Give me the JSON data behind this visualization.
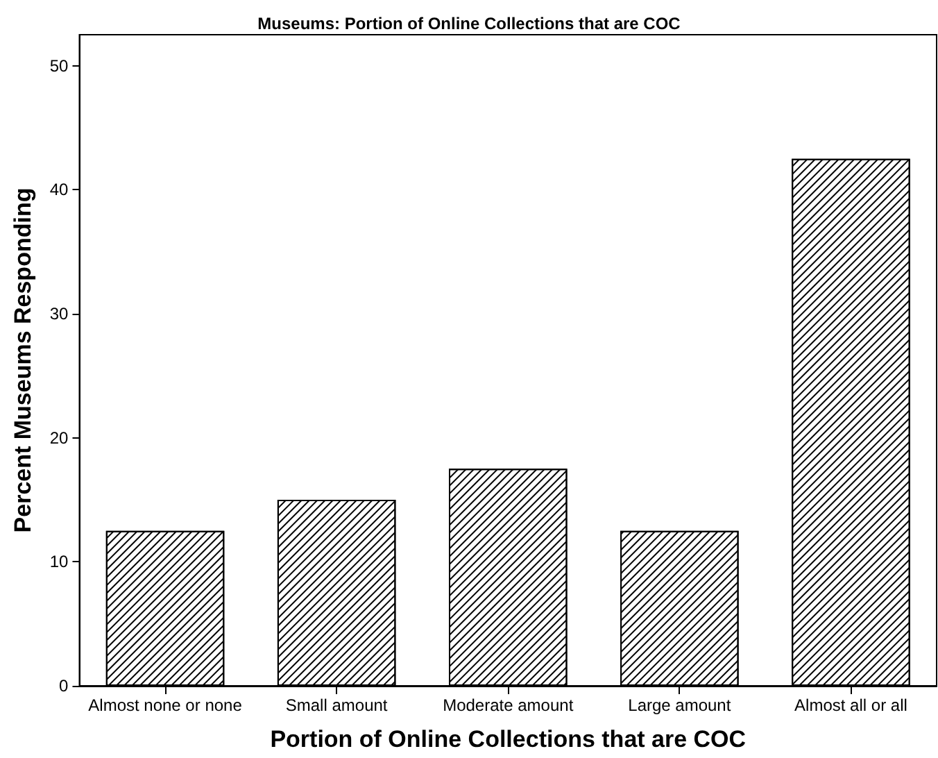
{
  "chart_data": {
    "type": "bar",
    "title": "Museums: Portion of Online Collections that are COC",
    "xlabel": "Portion of Online Collections that are COC",
    "ylabel": "Percent Museums Responding",
    "categories": [
      "Almost none or none",
      "Small amount",
      "Moderate amount",
      "Large amount",
      "Almost all or all"
    ],
    "values": [
      12.5,
      15,
      17.5,
      12.5,
      42.5
    ],
    "color": "#ffffff",
    "ylim": [
      0,
      52.5
    ],
    "yticks": [
      0,
      10,
      20,
      30,
      40,
      50
    ],
    "grid": false
  }
}
